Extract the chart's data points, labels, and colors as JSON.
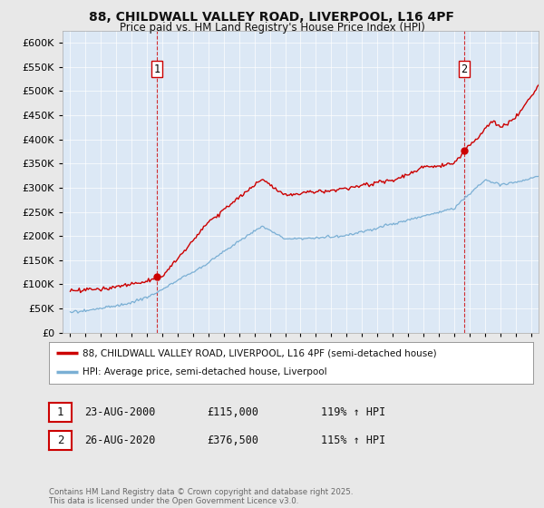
{
  "title_line1": "88, CHILDWALL VALLEY ROAD, LIVERPOOL, L16 4PF",
  "title_line2": "Price paid vs. HM Land Registry's House Price Index (HPI)",
  "yticks": [
    0,
    50000,
    100000,
    150000,
    200000,
    250000,
    300000,
    350000,
    400000,
    450000,
    500000,
    550000,
    600000
  ],
  "xlim_start": 1994.5,
  "xlim_end": 2025.5,
  "ylim": [
    0,
    625000
  ],
  "bg_color": "#e8e8e8",
  "plot_bg_color": "#dce8f5",
  "red_color": "#cc0000",
  "blue_color": "#7aafd4",
  "marker1_x": 2000.65,
  "marker1_y": 115000,
  "marker2_x": 2020.65,
  "marker2_y": 376500,
  "legend_label1": "88, CHILDWALL VALLEY ROAD, LIVERPOOL, L16 4PF (semi-detached house)",
  "legend_label2": "HPI: Average price, semi-detached house, Liverpool",
  "annotation1_label": "1",
  "annotation2_label": "2",
  "table_row1": [
    "1",
    "23-AUG-2000",
    "£115,000",
    "119% ↑ HPI"
  ],
  "table_row2": [
    "2",
    "26-AUG-2020",
    "£376,500",
    "115% ↑ HPI"
  ],
  "footer_text": "Contains HM Land Registry data © Crown copyright and database right 2025.\nThis data is licensed under the Open Government Licence v3.0.",
  "vline1_x": 2000.65,
  "vline2_x": 2020.65
}
